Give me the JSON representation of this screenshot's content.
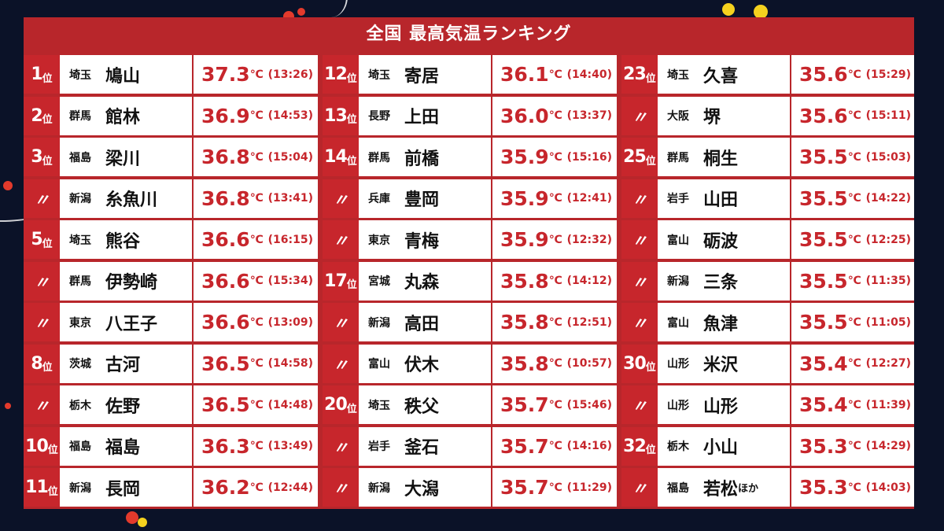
{
  "title": "全国 最高気温ランキング",
  "columns": [
    [
      {
        "rank": "1",
        "unit": "位",
        "pref": "埼玉",
        "city": "鳩山",
        "extra": "",
        "temp": "37.3",
        "deg": "℃",
        "time": "(13:26)"
      },
      {
        "rank": "2",
        "unit": "位",
        "pref": "群馬",
        "city": "館林",
        "extra": "",
        "temp": "36.9",
        "deg": "℃",
        "time": "(14:53)"
      },
      {
        "rank": "3",
        "unit": "位",
        "pref": "福島",
        "city": "梁川",
        "extra": "",
        "temp": "36.8",
        "deg": "℃",
        "time": "(15:04)"
      },
      {
        "rank": "〃",
        "unit": "",
        "pref": "新潟",
        "city": "糸魚川",
        "extra": "",
        "temp": "36.8",
        "deg": "℃",
        "time": "(13:41)"
      },
      {
        "rank": "5",
        "unit": "位",
        "pref": "埼玉",
        "city": "熊谷",
        "extra": "",
        "temp": "36.6",
        "deg": "℃",
        "time": "(16:15)"
      },
      {
        "rank": "〃",
        "unit": "",
        "pref": "群馬",
        "city": "伊勢崎",
        "extra": "",
        "temp": "36.6",
        "deg": "℃",
        "time": "(15:34)"
      },
      {
        "rank": "〃",
        "unit": "",
        "pref": "東京",
        "city": "八王子",
        "extra": "",
        "temp": "36.6",
        "deg": "℃",
        "time": "(13:09)"
      },
      {
        "rank": "8",
        "unit": "位",
        "pref": "茨城",
        "city": "古河",
        "extra": "",
        "temp": "36.5",
        "deg": "℃",
        "time": "(14:58)"
      },
      {
        "rank": "〃",
        "unit": "",
        "pref": "栃木",
        "city": "佐野",
        "extra": "",
        "temp": "36.5",
        "deg": "℃",
        "time": "(14:48)"
      },
      {
        "rank": "10",
        "unit": "位",
        "pref": "福島",
        "city": "福島",
        "extra": "",
        "temp": "36.3",
        "deg": "℃",
        "time": "(13:49)"
      },
      {
        "rank": "11",
        "unit": "位",
        "pref": "新潟",
        "city": "長岡",
        "extra": "",
        "temp": "36.2",
        "deg": "℃",
        "time": "(12:44)"
      }
    ],
    [
      {
        "rank": "12",
        "unit": "位",
        "pref": "埼玉",
        "city": "寄居",
        "extra": "",
        "temp": "36.1",
        "deg": "℃",
        "time": "(14:40)"
      },
      {
        "rank": "13",
        "unit": "位",
        "pref": "長野",
        "city": "上田",
        "extra": "",
        "temp": "36.0",
        "deg": "℃",
        "time": "(13:37)"
      },
      {
        "rank": "14",
        "unit": "位",
        "pref": "群馬",
        "city": "前橋",
        "extra": "",
        "temp": "35.9",
        "deg": "℃",
        "time": "(15:16)"
      },
      {
        "rank": "〃",
        "unit": "",
        "pref": "兵庫",
        "city": "豊岡",
        "extra": "",
        "temp": "35.9",
        "deg": "℃",
        "time": "(12:41)"
      },
      {
        "rank": "〃",
        "unit": "",
        "pref": "東京",
        "city": "青梅",
        "extra": "",
        "temp": "35.9",
        "deg": "℃",
        "time": "(12:32)"
      },
      {
        "rank": "17",
        "unit": "位",
        "pref": "宮城",
        "city": "丸森",
        "extra": "",
        "temp": "35.8",
        "deg": "℃",
        "time": "(14:12)"
      },
      {
        "rank": "〃",
        "unit": "",
        "pref": "新潟",
        "city": "高田",
        "extra": "",
        "temp": "35.8",
        "deg": "℃",
        "time": "(12:51)"
      },
      {
        "rank": "〃",
        "unit": "",
        "pref": "富山",
        "city": "伏木",
        "extra": "",
        "temp": "35.8",
        "deg": "℃",
        "time": "(10:57)"
      },
      {
        "rank": "20",
        "unit": "位",
        "pref": "埼玉",
        "city": "秩父",
        "extra": "",
        "temp": "35.7",
        "deg": "℃",
        "time": "(15:46)"
      },
      {
        "rank": "〃",
        "unit": "",
        "pref": "岩手",
        "city": "釜石",
        "extra": "",
        "temp": "35.7",
        "deg": "℃",
        "time": "(14:16)"
      },
      {
        "rank": "〃",
        "unit": "",
        "pref": "新潟",
        "city": "大潟",
        "extra": "",
        "temp": "35.7",
        "deg": "℃",
        "time": "(11:29)"
      }
    ],
    [
      {
        "rank": "23",
        "unit": "位",
        "pref": "埼玉",
        "city": "久喜",
        "extra": "",
        "temp": "35.6",
        "deg": "℃",
        "time": "(15:29)"
      },
      {
        "rank": "〃",
        "unit": "",
        "pref": "大阪",
        "city": "堺",
        "extra": "",
        "temp": "35.6",
        "deg": "℃",
        "time": "(15:11)"
      },
      {
        "rank": "25",
        "unit": "位",
        "pref": "群馬",
        "city": "桐生",
        "extra": "",
        "temp": "35.5",
        "deg": "℃",
        "time": "(15:03)"
      },
      {
        "rank": "〃",
        "unit": "",
        "pref": "岩手",
        "city": "山田",
        "extra": "",
        "temp": "35.5",
        "deg": "℃",
        "time": "(14:22)"
      },
      {
        "rank": "〃",
        "unit": "",
        "pref": "富山",
        "city": "砺波",
        "extra": "",
        "temp": "35.5",
        "deg": "℃",
        "time": "(12:25)"
      },
      {
        "rank": "〃",
        "unit": "",
        "pref": "新潟",
        "city": "三条",
        "extra": "",
        "temp": "35.5",
        "deg": "℃",
        "time": "(11:35)"
      },
      {
        "rank": "〃",
        "unit": "",
        "pref": "富山",
        "city": "魚津",
        "extra": "",
        "temp": "35.5",
        "deg": "℃",
        "time": "(11:05)"
      },
      {
        "rank": "30",
        "unit": "位",
        "pref": "山形",
        "city": "米沢",
        "extra": "",
        "temp": "35.4",
        "deg": "℃",
        "time": "(12:27)"
      },
      {
        "rank": "〃",
        "unit": "",
        "pref": "山形",
        "city": "山形",
        "extra": "",
        "temp": "35.4",
        "deg": "℃",
        "time": "(11:39)"
      },
      {
        "rank": "32",
        "unit": "位",
        "pref": "栃木",
        "city": "小山",
        "extra": "",
        "temp": "35.3",
        "deg": "℃",
        "time": "(14:29)"
      },
      {
        "rank": "〃",
        "unit": "",
        "pref": "福島",
        "city": "若松",
        "extra": "ほか",
        "temp": "35.3",
        "deg": "℃",
        "time": "(14:03)"
      }
    ]
  ],
  "colors": {
    "accent": "#c7262c",
    "panel": "#b8262b",
    "background": "#0b1228"
  }
}
